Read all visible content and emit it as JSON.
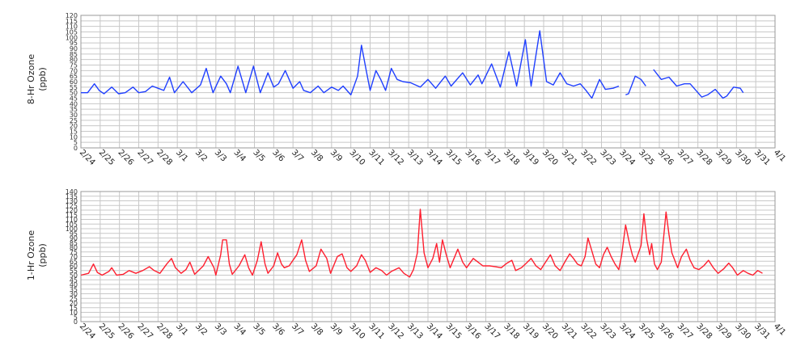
{
  "chart_data": [
    {
      "type": "line",
      "id": "ozone-8hr",
      "ylabel": "8-Hr Ozone\n(ppb)",
      "xlabel": "",
      "ylim": [
        0,
        120
      ],
      "ystep": 5,
      "ytick_labels": [
        "0",
        "5",
        "10",
        "15",
        "20",
        "25",
        "30",
        "35",
        "40",
        "45",
        "50",
        "55",
        "60",
        "65",
        "70",
        "75",
        "80",
        "85",
        "90",
        "95",
        "100",
        "105",
        "110",
        "115",
        "120"
      ],
      "grid": true,
      "color": "#1f3fff",
      "categories": [
        "2/24",
        "2/25",
        "2/26",
        "2/27",
        "2/28",
        "3/1",
        "3/2",
        "3/3",
        "3/4",
        "3/5",
        "3/6",
        "3/7",
        "3/8",
        "3/9",
        "3/10",
        "3/11",
        "3/12",
        "3/13",
        "3/14",
        "3/15",
        "3/16",
        "3/17",
        "3/18",
        "3/19",
        "3/20",
        "3/21",
        "3/22",
        "3/23",
        "3/24",
        "3/25",
        "3/26",
        "3/27",
        "3/28",
        "3/29",
        "3/30",
        "3/31",
        "4/1"
      ],
      "series": [
        {
          "values": [
            [
              0,
              50
            ],
            [
              0.35,
              50
            ],
            [
              0.7,
              58
            ],
            [
              0.95,
              52
            ],
            [
              1.2,
              49
            ],
            [
              1.6,
              55
            ],
            [
              1.95,
              49
            ],
            [
              2.3,
              50
            ],
            [
              2.7,
              55
            ],
            [
              3.0,
              50
            ],
            [
              3.35,
              51
            ],
            [
              3.7,
              56
            ],
            [
              4.0,
              54
            ],
            [
              4.3,
              52
            ],
            [
              4.6,
              64
            ],
            [
              4.85,
              50
            ],
            [
              5.3,
              60
            ],
            [
              5.75,
              50
            ],
            [
              6.2,
              57
            ],
            [
              6.5,
              72
            ],
            [
              6.85,
              50
            ],
            [
              7.25,
              65
            ],
            [
              7.55,
              58
            ],
            [
              7.75,
              50
            ],
            [
              8.15,
              74
            ],
            [
              8.55,
              50
            ],
            [
              8.95,
              74
            ],
            [
              9.3,
              50
            ],
            [
              9.7,
              68
            ],
            [
              10.0,
              55
            ],
            [
              10.25,
              58
            ],
            [
              10.6,
              70
            ],
            [
              11.0,
              54
            ],
            [
              11.35,
              60
            ],
            [
              11.55,
              52
            ],
            [
              11.9,
              50
            ],
            [
              12.3,
              56
            ],
            [
              12.6,
              50
            ],
            [
              13.0,
              55
            ],
            [
              13.35,
              52
            ],
            [
              13.6,
              56
            ],
            [
              14.0,
              48
            ],
            [
              14.35,
              65
            ],
            [
              14.55,
              93
            ],
            [
              14.8,
              70
            ],
            [
              15.0,
              52
            ],
            [
              15.3,
              70
            ],
            [
              15.55,
              62
            ],
            [
              15.8,
              52
            ],
            [
              16.1,
              72
            ],
            [
              16.4,
              62
            ],
            [
              16.7,
              60
            ],
            [
              17.1,
              59
            ],
            [
              17.6,
              55
            ],
            [
              18.0,
              62
            ],
            [
              18.4,
              54
            ],
            [
              18.9,
              65
            ],
            [
              19.2,
              56
            ],
            [
              19.8,
              68
            ],
            [
              20.2,
              57
            ],
            [
              20.6,
              66
            ],
            [
              20.8,
              58
            ],
            [
              21.3,
              76
            ],
            [
              21.75,
              55
            ],
            [
              22.2,
              87
            ],
            [
              22.6,
              56
            ],
            [
              23.05,
              98
            ],
            [
              23.35,
              56
            ],
            [
              23.8,
              106
            ],
            [
              24.15,
              60
            ],
            [
              24.5,
              57
            ],
            [
              24.85,
              68
            ],
            [
              25.2,
              58
            ],
            [
              25.55,
              56
            ],
            [
              25.9,
              58
            ],
            [
              26.2,
              52
            ],
            [
              26.5,
              45
            ],
            [
              26.9,
              62
            ],
            [
              27.2,
              53
            ],
            [
              27.6,
              54
            ],
            [
              27.9,
              56
            ]
          ]
        },
        {
          "values": [
            [
              28.25,
              48
            ],
            [
              28.4,
              49
            ],
            [
              28.75,
              65
            ],
            [
              29.05,
              62
            ],
            [
              29.3,
              56
            ]
          ]
        },
        {
          "values": [
            [
              29.7,
              71
            ],
            [
              30.1,
              62
            ],
            [
              30.5,
              64
            ],
            [
              30.9,
              56
            ],
            [
              31.3,
              58
            ],
            [
              31.6,
              58
            ],
            [
              31.9,
              52
            ],
            [
              32.2,
              46
            ],
            [
              32.5,
              48
            ],
            [
              32.9,
              53
            ],
            [
              33.3,
              45
            ],
            [
              33.5,
              47
            ],
            [
              33.85,
              55
            ],
            [
              34.2,
              54
            ],
            [
              34.35,
              50
            ]
          ]
        }
      ]
    },
    {
      "type": "line",
      "id": "ozone-1hr",
      "ylabel": "1-Hr Ozone\n(ppb)",
      "xlabel": "",
      "ylim": [
        0,
        140
      ],
      "ystep": 5,
      "ytick_labels": [
        "0",
        "5",
        "10",
        "15",
        "20",
        "25",
        "30",
        "35",
        "40",
        "45",
        "50",
        "55",
        "60",
        "65",
        "70",
        "75",
        "80",
        "85",
        "90",
        "95",
        "100",
        "105",
        "110",
        "115",
        "120",
        "125",
        "130",
        "135",
        "140"
      ],
      "grid": true,
      "color": "#ff1f2f",
      "categories": [
        "2/24",
        "2/25",
        "2/26",
        "2/27",
        "2/28",
        "3/1",
        "3/2",
        "3/3",
        "3/4",
        "3/5",
        "3/6",
        "3/7",
        "3/8",
        "3/9",
        "3/10",
        "3/11",
        "3/12",
        "3/13",
        "3/14",
        "3/15",
        "3/16",
        "3/17",
        "3/18",
        "3/19",
        "3/20",
        "3/21",
        "3/22",
        "3/23",
        "3/24",
        "3/25",
        "3/26",
        "3/27",
        "3/28",
        "3/29",
        "3/30",
        "3/31",
        "4/1"
      ],
      "series": [
        {
          "values": [
            [
              0,
              50
            ],
            [
              0.4,
              52
            ],
            [
              0.65,
              62
            ],
            [
              0.85,
              53
            ],
            [
              1.1,
              50
            ],
            [
              1.45,
              54
            ],
            [
              1.6,
              58
            ],
            [
              1.85,
              50
            ],
            [
              2.2,
              51
            ],
            [
              2.5,
              55
            ],
            [
              2.85,
              52
            ],
            [
              3.2,
              55
            ],
            [
              3.55,
              59
            ],
            [
              3.8,
              55
            ],
            [
              4.1,
              52
            ],
            [
              4.45,
              62
            ],
            [
              4.7,
              68
            ],
            [
              4.9,
              58
            ],
            [
              5.2,
              52
            ],
            [
              5.45,
              56
            ],
            [
              5.65,
              64
            ],
            [
              5.9,
              51
            ],
            [
              6.15,
              56
            ],
            [
              6.35,
              60
            ],
            [
              6.6,
              70
            ],
            [
              6.9,
              58
            ],
            [
              7.0,
              50
            ],
            [
              7.25,
              72
            ],
            [
              7.35,
              88
            ],
            [
              7.55,
              88
            ],
            [
              7.7,
              62
            ],
            [
              7.85,
              51
            ],
            [
              8.2,
              60
            ],
            [
              8.5,
              72
            ],
            [
              8.7,
              58
            ],
            [
              8.9,
              50
            ],
            [
              9.15,
              66
            ],
            [
              9.35,
              86
            ],
            [
              9.55,
              62
            ],
            [
              9.7,
              52
            ],
            [
              10.0,
              60
            ],
            [
              10.2,
              74
            ],
            [
              10.4,
              62
            ],
            [
              10.55,
              58
            ],
            [
              10.8,
              60
            ],
            [
              11.2,
              72
            ],
            [
              11.45,
              88
            ],
            [
              11.65,
              66
            ],
            [
              11.85,
              54
            ],
            [
              12.2,
              60
            ],
            [
              12.45,
              78
            ],
            [
              12.75,
              68
            ],
            [
              12.95,
              52
            ],
            [
              13.3,
              70
            ],
            [
              13.55,
              73
            ],
            [
              13.8,
              58
            ],
            [
              14.0,
              54
            ],
            [
              14.3,
              60
            ],
            [
              14.55,
              72
            ],
            [
              14.75,
              66
            ],
            [
              15.0,
              53
            ],
            [
              15.3,
              58
            ],
            [
              15.6,
              55
            ],
            [
              15.85,
              50
            ],
            [
              16.1,
              54
            ],
            [
              16.5,
              58
            ],
            [
              16.75,
              52
            ],
            [
              17.05,
              48
            ],
            [
              17.25,
              56
            ],
            [
              17.45,
              74
            ],
            [
              17.6,
              121
            ],
            [
              17.8,
              74
            ],
            [
              18.0,
              58
            ],
            [
              18.25,
              68
            ],
            [
              18.45,
              84
            ],
            [
              18.6,
              64
            ],
            [
              18.75,
              88
            ],
            [
              18.95,
              72
            ],
            [
              19.15,
              58
            ],
            [
              19.35,
              68
            ],
            [
              19.55,
              78
            ],
            [
              19.8,
              64
            ],
            [
              20.0,
              58
            ],
            [
              20.35,
              68
            ],
            [
              20.6,
              64
            ],
            [
              20.85,
              60
            ],
            [
              21.2,
              60
            ],
            [
              21.5,
              59
            ],
            [
              21.8,
              58
            ],
            [
              22.1,
              63
            ],
            [
              22.35,
              66
            ],
            [
              22.55,
              55
            ],
            [
              22.85,
              58
            ],
            [
              23.1,
              63
            ],
            [
              23.35,
              68
            ],
            [
              23.6,
              60
            ],
            [
              23.85,
              56
            ],
            [
              24.1,
              64
            ],
            [
              24.35,
              72
            ],
            [
              24.6,
              60
            ],
            [
              24.85,
              55
            ],
            [
              25.15,
              66
            ],
            [
              25.35,
              73
            ],
            [
              25.55,
              68
            ],
            [
              25.75,
              62
            ],
            [
              25.95,
              60
            ],
            [
              26.15,
              70
            ],
            [
              26.3,
              90
            ],
            [
              26.5,
              76
            ],
            [
              26.7,
              62
            ],
            [
              26.9,
              58
            ],
            [
              27.1,
              72
            ],
            [
              27.3,
              80
            ],
            [
              27.5,
              70
            ],
            [
              27.7,
              62
            ],
            [
              27.9,
              56
            ],
            [
              28.05,
              72
            ],
            [
              28.25,
              104
            ],
            [
              28.45,
              84
            ],
            [
              28.6,
              72
            ],
            [
              28.75,
              64
            ],
            [
              29.05,
              82
            ],
            [
              29.2,
              116
            ],
            [
              29.35,
              88
            ],
            [
              29.5,
              72
            ],
            [
              29.6,
              84
            ],
            [
              29.75,
              62
            ],
            [
              29.9,
              56
            ],
            [
              30.1,
              64
            ],
            [
              30.35,
              118
            ],
            [
              30.5,
              94
            ],
            [
              30.65,
              74
            ],
            [
              30.8,
              66
            ],
            [
              30.95,
              58
            ],
            [
              31.15,
              70
            ],
            [
              31.4,
              78
            ],
            [
              31.6,
              66
            ],
            [
              31.8,
              58
            ],
            [
              32.05,
              56
            ],
            [
              32.3,
              60
            ],
            [
              32.55,
              66
            ],
            [
              32.8,
              58
            ],
            [
              33.05,
              52
            ],
            [
              33.35,
              57
            ],
            [
              33.6,
              63
            ],
            [
              33.8,
              58
            ],
            [
              34.05,
              50
            ],
            [
              34.35,
              55
            ],
            [
              34.6,
              52
            ],
            [
              34.85,
              50
            ],
            [
              35.1,
              55
            ],
            [
              35.35,
              52
            ]
          ]
        }
      ]
    }
  ]
}
